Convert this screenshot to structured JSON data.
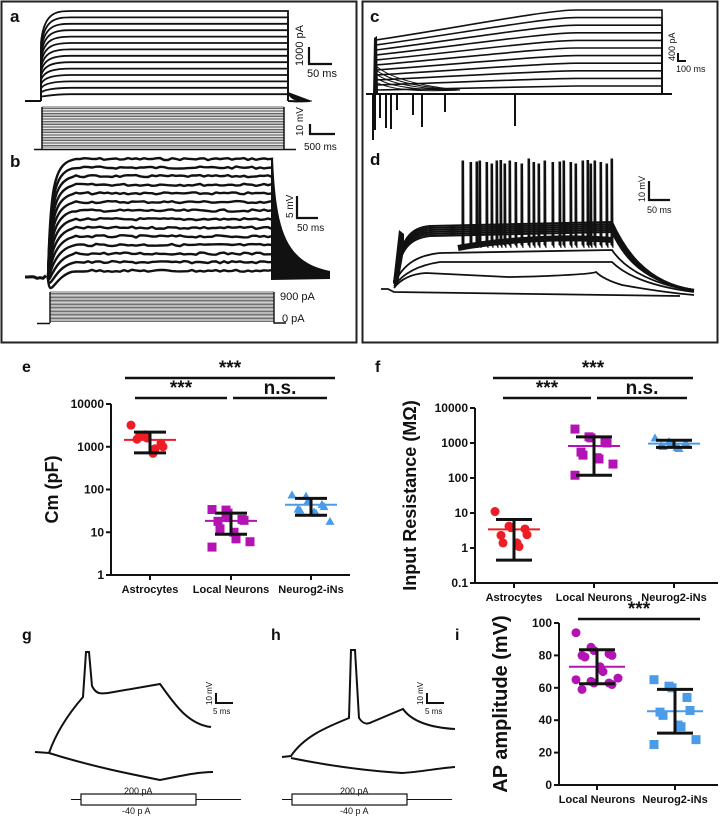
{
  "panels": {
    "a": {
      "letter": "a",
      "scale_y": "1000 pA",
      "scale_x": "50 ms",
      "stim_scale_y": "10 mV",
      "stim_scale_x": "500 ms"
    },
    "b": {
      "letter": "b",
      "scale_y": "5 mV",
      "scale_x": "50 ms",
      "stim_top": "900 pA",
      "stim_bottom": "0 pA"
    },
    "c": {
      "letter": "c",
      "scale_y": "400 pA",
      "scale_x": "100 ms"
    },
    "d": {
      "letter": "d",
      "scale_y": "10 mV",
      "scale_x": "50 ms"
    },
    "g": {
      "letter": "g",
      "scale_y": "10 mV",
      "scale_x": "5 ms",
      "stim_top": "200 pA",
      "stim_bottom": "-40 p A"
    },
    "h": {
      "letter": "h",
      "scale_y": "10 mV",
      "scale_x": "5 ms",
      "stim_top": "200 pA",
      "stim_bottom": "-40 p A"
    }
  },
  "colors": {
    "astro": "#ee1c24",
    "local": "#b413b4",
    "neurog": "#4a9be8",
    "ink": "#111111"
  },
  "chart_data": [
    {
      "panel": "e",
      "type": "scatter",
      "yscale": "log",
      "ylabel": "Cm (pF)",
      "ylim": [
        1,
        10000
      ],
      "yticks": [
        "1",
        "10",
        "100",
        "1000",
        "10000"
      ],
      "categories": [
        "Astrocytes",
        "Local Neurons",
        "Neurog2-iNs"
      ],
      "significance": [
        {
          "pair": "Astrocytes-Neurog2-iNs",
          "label": "***"
        },
        {
          "pair": "Astrocytes-Local Neurons",
          "label": "***"
        },
        {
          "pair": "Local Neurons-Neurog2-iNs",
          "label": "n.s."
        }
      ],
      "series": [
        {
          "name": "Astrocytes",
          "marker": "circle",
          "values": [
            3200,
            1900,
            1600,
            1200,
            1000,
            1500,
            1700,
            700,
            900
          ],
          "mean": 1450,
          "sd_low": 720,
          "sd_high": 2200
        },
        {
          "name": "Local Neurons",
          "marker": "square",
          "values": [
            34,
            25,
            22,
            20,
            19,
            18,
            12,
            10,
            7,
            6,
            4.5,
            33,
            28
          ],
          "mean": 18.5,
          "sd_low": 9,
          "sd_high": 28
        },
        {
          "name": "Neurog2-iNs",
          "marker": "triangle",
          "values": [
            75,
            70,
            55,
            45,
            40,
            35,
            33,
            30,
            28,
            18
          ],
          "mean": 44,
          "sd_low": 25,
          "sd_high": 62
        }
      ]
    },
    {
      "panel": "f",
      "type": "scatter",
      "yscale": "log",
      "ylabel": "Input Resistance (MΩ)",
      "ylim": [
        0.1,
        10000
      ],
      "yticks": [
        "0.1",
        "1",
        "10",
        "100",
        "1000",
        "10000"
      ],
      "categories": [
        "Astrocytes",
        "Local Neurons",
        "Neurog2-iNs"
      ],
      "significance": [
        {
          "pair": "Astrocytes-Neurog2-iNs",
          "label": "***"
        },
        {
          "pair": "Astrocytes-Local Neurons",
          "label": "***"
        },
        {
          "pair": "Local Neurons-Neurog2-iNs",
          "label": "n.s."
        }
      ],
      "series": [
        {
          "name": "Astrocytes",
          "marker": "circle",
          "values": [
            11,
            4.2,
            3.8,
            3.5,
            2.4,
            2.3,
            1.4,
            1.4,
            1.1
          ],
          "mean": 3.4,
          "sd_low": 0.45,
          "sd_high": 6.5
        },
        {
          "name": "Local Neurons",
          "marker": "square",
          "values": [
            2500,
            1500,
            1400,
            1100,
            1000,
            550,
            450,
            380,
            350,
            250,
            120
          ],
          "mean": 820,
          "sd_low": 120,
          "sd_high": 1500
        },
        {
          "name": "Neurog2-iNs",
          "marker": "triangle",
          "values": [
            1400,
            1100,
            1000,
            950,
            900,
            850,
            800,
            750,
            700
          ],
          "mean": 960,
          "sd_low": 750,
          "sd_high": 1200
        }
      ]
    },
    {
      "panel": "i",
      "type": "scatter",
      "yscale": "linear",
      "ylabel": "AP amplitude (mV)",
      "ylim": [
        0,
        100
      ],
      "yticks": [
        "0",
        "20",
        "40",
        "60",
        "80",
        "100"
      ],
      "categories": [
        "Local Neurons",
        "Neurog2-iNs"
      ],
      "significance": [
        {
          "pair": "Local Neurons-Neurog2-iNs",
          "label": "***"
        }
      ],
      "series": [
        {
          "name": "Local Neurons",
          "marker": "circle",
          "values": [
            94,
            85,
            83,
            81,
            80,
            80,
            79,
            73,
            70,
            66,
            65,
            64,
            63,
            63,
            62,
            59
          ],
          "mean": 73,
          "sd_low": 62.5,
          "sd_high": 83.5
        },
        {
          "name": "Neurog2-iNs",
          "marker": "square",
          "values": [
            65,
            61,
            60,
            54,
            46,
            45,
            43,
            37,
            36,
            28,
            25
          ],
          "mean": 45.5,
          "sd_low": 32,
          "sd_high": 59
        }
      ]
    }
  ]
}
